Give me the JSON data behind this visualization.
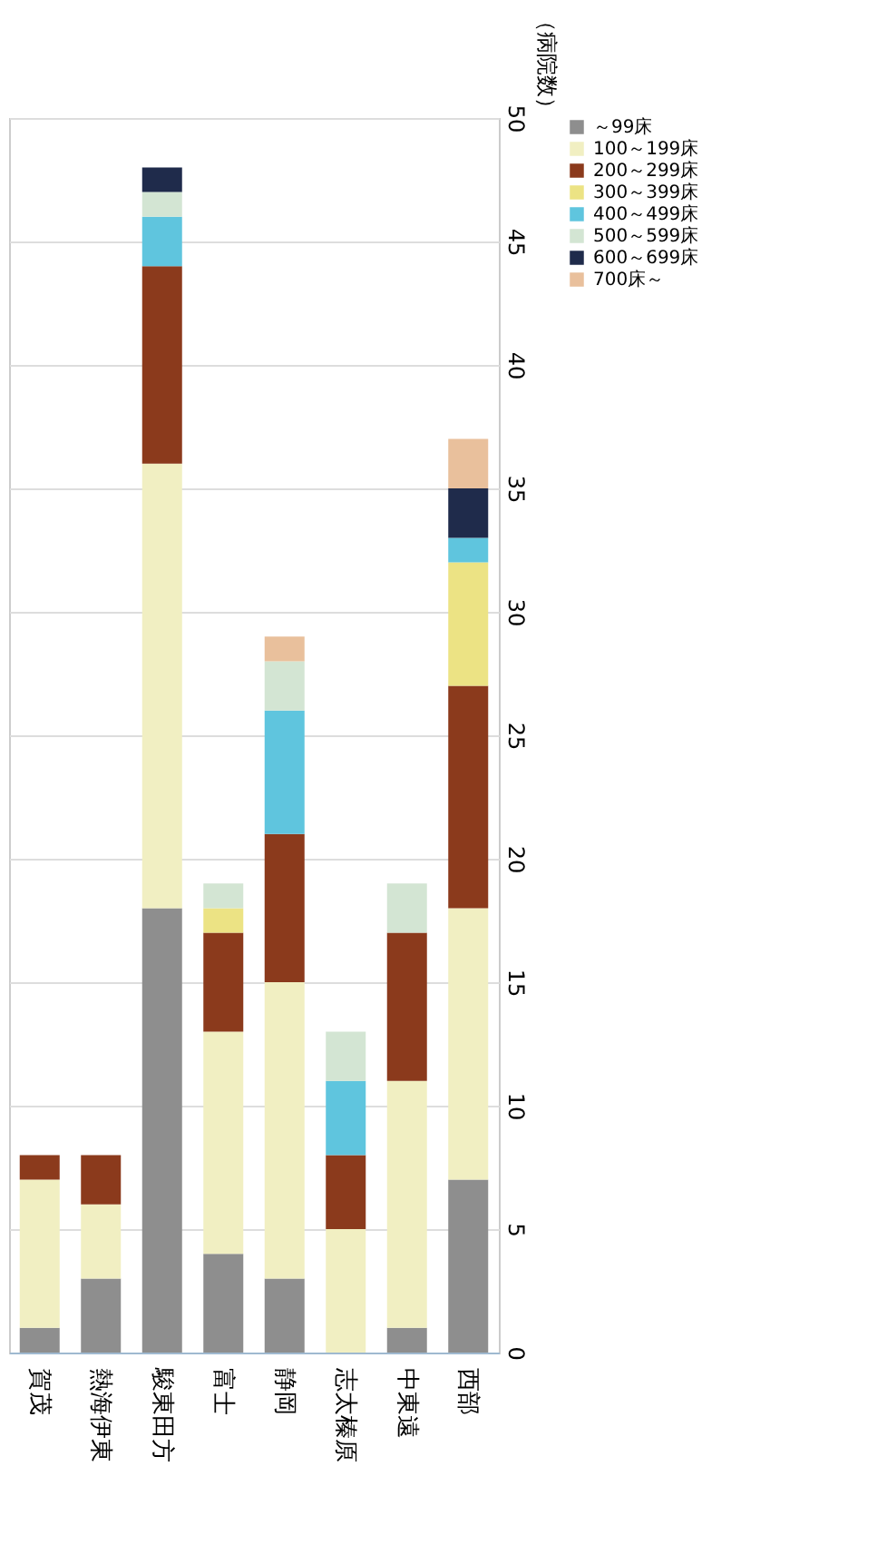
{
  "chart_data": {
    "type": "bar",
    "stacked": true,
    "ylabel": "（病院数）",
    "categories": [
      "賀茂",
      "熱海伊東",
      "駿東田方",
      "富士",
      "静岡",
      "志太榛原",
      "中東遠",
      "西部"
    ],
    "series": [
      {
        "name": "～99床",
        "color": "#8e8e8e",
        "values": [
          1,
          3,
          18,
          4,
          3,
          0,
          1,
          7
        ]
      },
      {
        "name": "100～199床",
        "color": "#f1efc2",
        "values": [
          6,
          3,
          18,
          9,
          12,
          5,
          10,
          11
        ]
      },
      {
        "name": "200～299床",
        "color": "#8b3a1c",
        "values": [
          1,
          2,
          8,
          4,
          6,
          3,
          6,
          9
        ]
      },
      {
        "name": "300～399床",
        "color": "#ece384",
        "values": [
          0,
          0,
          0,
          1,
          0,
          0,
          0,
          5
        ]
      },
      {
        "name": "400～499床",
        "color": "#5fc5de",
        "values": [
          0,
          0,
          2,
          0,
          5,
          3,
          0,
          1
        ]
      },
      {
        "name": "500～599床",
        "color": "#d3e5d3",
        "values": [
          0,
          0,
          1,
          1,
          2,
          2,
          2,
          0
        ]
      },
      {
        "name": "600～699床",
        "color": "#1f2b4b",
        "values": [
          0,
          0,
          1,
          0,
          0,
          0,
          0,
          2
        ]
      },
      {
        "name": "700床～",
        "color": "#e9c09c",
        "values": [
          0,
          0,
          0,
          0,
          1,
          0,
          0,
          2
        ]
      }
    ],
    "ylim": [
      0,
      50
    ],
    "yticks": [
      0,
      5,
      10,
      15,
      20,
      25,
      30,
      35,
      40,
      45,
      50
    ],
    "grid": "y",
    "legend": "right"
  }
}
